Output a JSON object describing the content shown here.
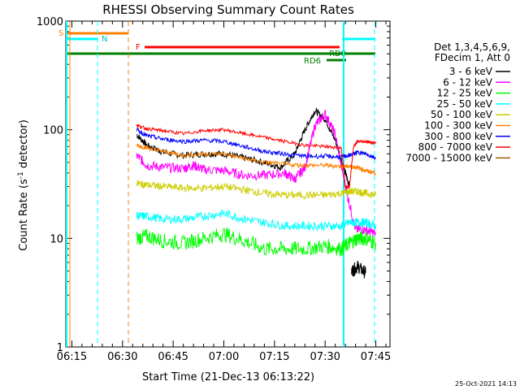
{
  "chart_data": {
    "type": "line",
    "title": "RHESSI Observing Summary Count Rates",
    "xlabel": "Start Time (21-Dec-13 06:13:22)",
    "ylabel_main": "Count Rate (s",
    "ylabel_sup": "-1",
    "ylabel_tail": " detector",
    "ylabel_end": ")",
    "yscale": "log",
    "ylim": [
      1,
      1000
    ],
    "xlim_minutes": [
      6.22,
      7.82
    ],
    "x_tick_labels": [
      "06:15",
      "06:30",
      "06:45",
      "07:00",
      "07:15",
      "07:30",
      "07:45"
    ],
    "x_ticks_hours": [
      6.25,
      6.5,
      6.75,
      7.0,
      7.25,
      7.5,
      7.75
    ],
    "y_tick_labels": [
      "1",
      "10",
      "100",
      "1000"
    ],
    "y_ticks": [
      1,
      10,
      100,
      1000
    ],
    "legend": {
      "header_lines": [
        "Det 1,3,4,5,6,9,",
        "FDecim 1, Att 0"
      ],
      "placement": "right"
    },
    "footer_date": "25-Oct-2021 14:13",
    "series": [
      {
        "name": "3 - 6 keV",
        "color": "#000000",
        "x": [
          6.57,
          6.62,
          6.7,
          6.8,
          6.9,
          7.0,
          7.1,
          7.2,
          7.28,
          7.35,
          7.4,
          7.45,
          7.5,
          7.55,
          7.6,
          7.62
        ],
        "y": [
          90,
          72,
          62,
          58,
          60,
          60,
          55,
          50,
          45,
          60,
          100,
          150,
          125,
          80,
          40,
          30
        ],
        "x2": [
          7.63,
          7.66,
          7.7
        ],
        "y2": [
          5,
          5.5,
          4.8
        ]
      },
      {
        "name": "6 - 12 keV",
        "color": "#ff00ff",
        "x": [
          6.57,
          6.62,
          6.7,
          6.8,
          6.85,
          6.9,
          7.0,
          7.1,
          7.2,
          7.3,
          7.35,
          7.4,
          7.45,
          7.5,
          7.55,
          7.6,
          7.65,
          7.7,
          7.75
        ],
        "y": [
          58,
          47,
          45,
          44,
          47,
          43,
          42,
          38,
          38,
          40,
          35,
          45,
          110,
          140,
          90,
          30,
          12,
          12,
          11
        ]
      },
      {
        "name": "12 - 25 keV",
        "color": "#00ff00",
        "x": [
          6.57,
          6.62,
          6.7,
          6.8,
          6.9,
          7.0,
          7.1,
          7.2,
          7.3,
          7.4,
          7.5,
          7.58,
          7.62,
          7.66,
          7.7,
          7.75
        ],
        "y": [
          10,
          10.5,
          9.5,
          9,
          10,
          11,
          9.5,
          8,
          8,
          8,
          8.5,
          8,
          9,
          10,
          10,
          9
        ]
      },
      {
        "name": "25 - 50 keV",
        "color": "#00ffff",
        "x": [
          6.57,
          6.62,
          6.7,
          6.8,
          6.9,
          7.0,
          7.1,
          7.2,
          7.3,
          7.4,
          7.5,
          7.58,
          7.62,
          7.66,
          7.7,
          7.75
        ],
        "y": [
          16,
          16,
          15,
          15,
          16,
          17,
          15,
          14,
          13,
          13,
          13,
          13,
          14,
          14,
          14,
          13
        ]
      },
      {
        "name": "50 - 100 keV",
        "color": "#cccc00",
        "x": [
          6.57,
          6.62,
          6.7,
          6.8,
          6.9,
          7.0,
          7.1,
          7.2,
          7.3,
          7.4,
          7.5,
          7.58,
          7.62,
          7.66,
          7.7,
          7.75
        ],
        "y": [
          32,
          31,
          30,
          29,
          29,
          30,
          28,
          26,
          25,
          25,
          25,
          26,
          27,
          27,
          26,
          25
        ]
      },
      {
        "name": "100 - 300 keV",
        "color": "#ff8000",
        "x": [
          6.57,
          6.62,
          6.7,
          6.8,
          6.9,
          7.0,
          7.1,
          7.2,
          7.3,
          7.4,
          7.5,
          7.58,
          7.62,
          7.66,
          7.7,
          7.75
        ],
        "y": [
          72,
          68,
          63,
          58,
          60,
          60,
          54,
          50,
          48,
          47,
          47,
          46,
          46,
          45,
          42,
          40
        ]
      },
      {
        "name": "300 - 800 keV",
        "color": "#0000ff",
        "x": [
          6.57,
          6.62,
          6.7,
          6.8,
          6.9,
          7.0,
          7.1,
          7.2,
          7.3,
          7.4,
          7.5,
          7.58,
          7.62,
          7.66,
          7.7,
          7.75
        ],
        "y": [
          100,
          88,
          82,
          78,
          80,
          78,
          70,
          63,
          60,
          57,
          57,
          56,
          58,
          62,
          60,
          55
        ]
      },
      {
        "name": "800 - 7000 keV",
        "color": "#ff0000",
        "x": [
          6.57,
          6.62,
          6.7,
          6.8,
          6.9,
          7.0,
          7.1,
          7.2,
          7.3,
          7.4,
          7.5,
          7.58,
          7.6,
          7.62,
          7.64,
          7.66,
          7.7,
          7.75
        ],
        "y": [
          110,
          102,
          98,
          92,
          98,
          100,
          92,
          85,
          78,
          72,
          70,
          68,
          30,
          30,
          70,
          78,
          78,
          75
        ]
      },
      {
        "name": "7000 - 15000 keV",
        "color": "#a05a00",
        "x": [],
        "y": []
      }
    ],
    "flags": {
      "saa_label": "S",
      "night_label": "N",
      "flare_label": "F",
      "decim_label": "RD0",
      "decim2_label": "RD6"
    }
  }
}
